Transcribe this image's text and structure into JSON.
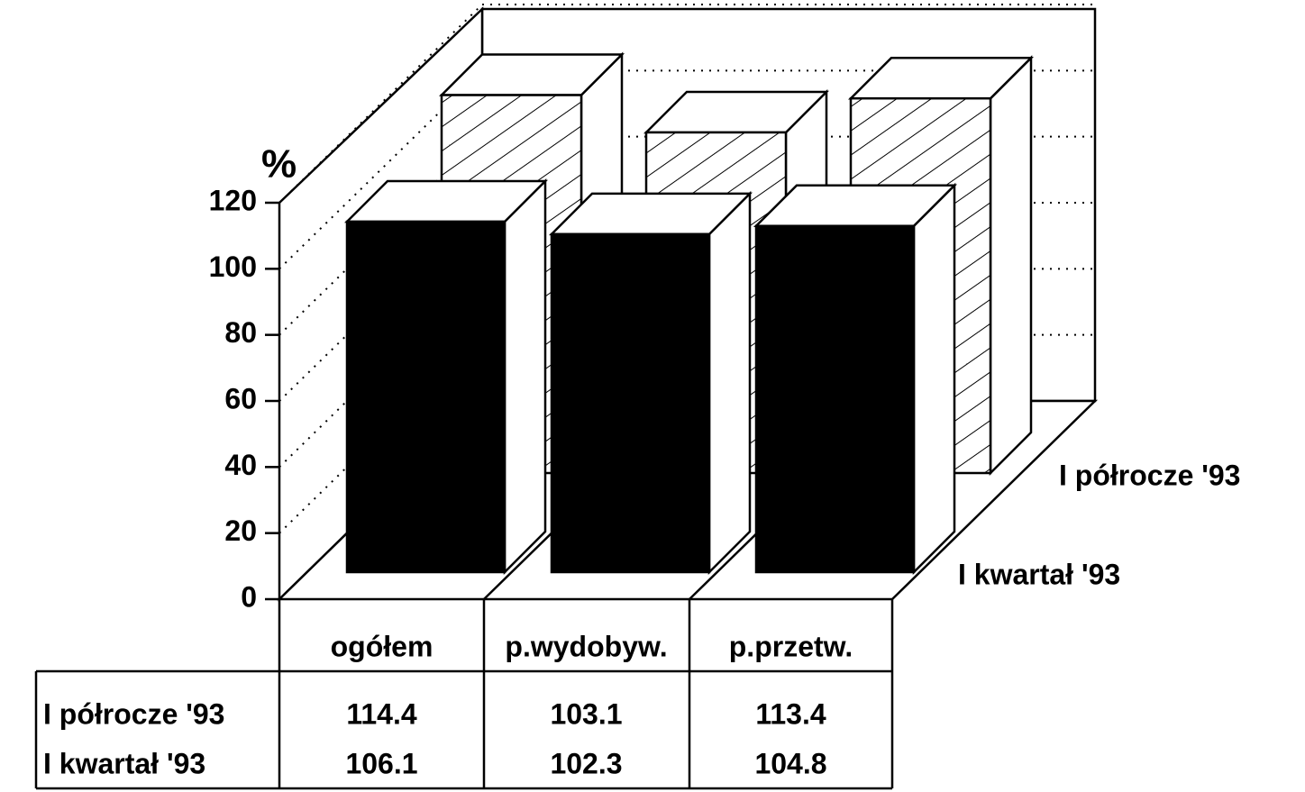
{
  "chart_data": {
    "type": "bar",
    "y_label": "%",
    "categories": [
      "ogółem",
      "p.wydobyw.",
      "p.przetw."
    ],
    "series": [
      {
        "name": "I półrocze '93",
        "color": "hatched",
        "values": [
          114.4,
          103.1,
          113.4
        ]
      },
      {
        "name": "I kwartał '93",
        "color": "#000000",
        "values": [
          106.1,
          102.3,
          104.8
        ]
      }
    ],
    "ylim": [
      0,
      120
    ],
    "yticks": [
      0,
      20,
      40,
      60,
      80,
      100,
      120
    ],
    "grid": true
  }
}
